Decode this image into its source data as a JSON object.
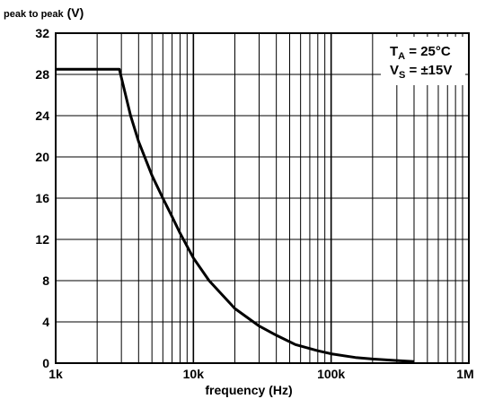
{
  "chart_data": {
    "type": "line",
    "title": "",
    "ylabel_prefix": "peak to peak",
    "ylabel_unit": "(V)",
    "xlabel": "frequency (Hz)",
    "x_scale": "log",
    "xlim": [
      1000,
      1000000
    ],
    "ylim": [
      0,
      32
    ],
    "grid": true,
    "x_ticks": [
      1000,
      10000,
      100000,
      1000000
    ],
    "x_tick_labels": [
      "1k",
      "10k",
      "100k",
      "1M"
    ],
    "y_ticks": [
      0,
      4,
      8,
      12,
      16,
      20,
      24,
      28,
      32
    ],
    "y_tick_labels": [
      "0",
      "4",
      "8",
      "12",
      "16",
      "20",
      "24",
      "28",
      "32"
    ],
    "series": [
      {
        "x": [
          1000,
          2000,
          2900,
          3500,
          4000,
          5000,
          6000,
          7000,
          8000,
          10000,
          13000,
          20000,
          30000,
          40000,
          55000,
          80000,
          100000,
          150000,
          200000,
          300000,
          400000
        ],
        "y": [
          28.5,
          28.5,
          28.5,
          24.0,
          21.5,
          18.2,
          16.0,
          14.2,
          12.6,
          10.2,
          8.0,
          5.3,
          3.6,
          2.7,
          1.8,
          1.2,
          0.9,
          0.55,
          0.4,
          0.25,
          0.15
        ]
      }
    ],
    "legend": {
      "position": "top-right",
      "line1": {
        "main": "T",
        "sub": "A",
        "rest": " = 25°C"
      },
      "line2": {
        "main": "V",
        "sub": "S",
        "rest": " = ±15V"
      }
    },
    "colors": {
      "line": "#000000",
      "grid": "#000000",
      "background": "#ffffff"
    }
  }
}
